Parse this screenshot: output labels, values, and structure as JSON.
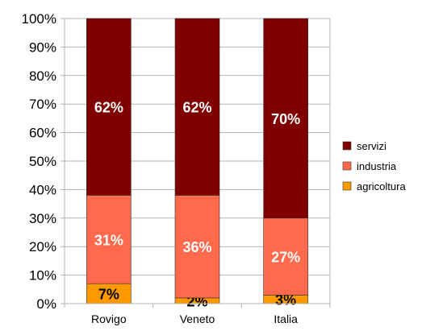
{
  "chart_data": {
    "type": "bar",
    "stacked": true,
    "percent": true,
    "categories": [
      "Rovigo",
      "Veneto",
      "Italia"
    ],
    "series": [
      {
        "name": "agricoltura",
        "color": "#ff9900",
        "values": [
          7,
          2,
          3
        ],
        "labels": [
          "7%",
          "2%",
          "3%"
        ],
        "label_color": "#000000"
      },
      {
        "name": "industria",
        "color": "#ff6a4d",
        "values": [
          31,
          36,
          27
        ],
        "labels": [
          "31%",
          "36%",
          "27%"
        ],
        "label_color": "#ffffff"
      },
      {
        "name": "servizi",
        "color": "#800000",
        "values": [
          62,
          62,
          70
        ],
        "labels": [
          "62%",
          "62%",
          "70%"
        ],
        "label_color": "#ffffff"
      }
    ],
    "yticks": [
      "0%",
      "10%",
      "20%",
      "30%",
      "40%",
      "50%",
      "60%",
      "70%",
      "80%",
      "90%",
      "100%"
    ],
    "ylim": [
      0,
      100
    ],
    "grid": true,
    "legend_position": "right",
    "legend_order": [
      "servizi",
      "industria",
      "agricoltura"
    ]
  }
}
